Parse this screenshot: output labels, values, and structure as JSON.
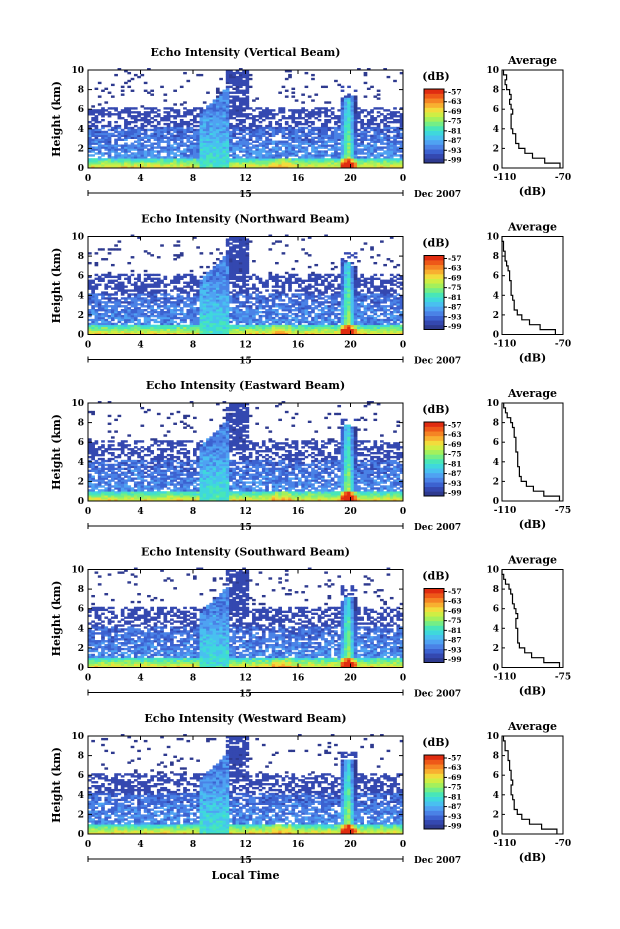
{
  "figure": {
    "x_label": "Local Time",
    "date_label": "Dec 2007",
    "day_label": "15",
    "colorbar_label": "(dB)",
    "colorbar_ticks": [
      "-57",
      "-63",
      "-69",
      "-75",
      "-81",
      "-87",
      "-93",
      "-99"
    ],
    "palette": [
      "#2e3a8f",
      "#3448b0",
      "#3c62d0",
      "#4a82e6",
      "#4fa2f2",
      "#49c0f0",
      "#3fd8dc",
      "#48e6b8",
      "#74ee86",
      "#a4f05c",
      "#cfee44",
      "#f2dc3c",
      "#f8b030",
      "#f58424",
      "#ee5818",
      "#e02c10"
    ],
    "avg_title": "Average",
    "avg_xlabel": "(dB)"
  },
  "chart_data": [
    {
      "type": "heatmap",
      "title": "Echo Intensity (Vertical Beam)",
      "ylabel": "Height (km)",
      "xlim": [
        0,
        24
      ],
      "ylim": [
        0,
        10
      ],
      "xticks": [
        "0",
        "4",
        "8",
        "12",
        "16",
        "20",
        "0"
      ],
      "yticks": [
        "0",
        "2",
        "4",
        "6",
        "8",
        "10"
      ],
      "color_range": [
        -99,
        -57
      ],
      "average_profile": {
        "xlim": [
          -110,
          -70
        ],
        "xticks": [
          "-110",
          "-70"
        ],
        "ylim": [
          0,
          10
        ],
        "height": [
          0,
          0.5,
          1,
          1.5,
          2,
          2.5,
          3,
          3.5,
          4,
          4.5,
          5,
          5.5,
          6,
          6.5,
          7,
          7.5,
          8,
          8.5,
          9,
          9.5
        ],
        "db": [
          -72,
          -82,
          -90,
          -95,
          -99,
          -101,
          -101,
          -103,
          -104,
          -104,
          -104,
          -103,
          -104,
          -105,
          -104,
          -105,
          -107,
          -108,
          -107,
          -109
        ]
      }
    },
    {
      "type": "heatmap",
      "title": "Echo Intensity (Northward Beam)",
      "ylabel": "Height (km)",
      "xlim": [
        0,
        24
      ],
      "ylim": [
        0,
        10
      ],
      "xticks": [
        "0",
        "4",
        "8",
        "12",
        "16",
        "20",
        "0"
      ],
      "yticks": [
        "0",
        "2",
        "4",
        "6",
        "8",
        "10"
      ],
      "color_range": [
        -99,
        -57
      ],
      "average_profile": {
        "xlim": [
          -110,
          -70
        ],
        "xticks": [
          "-110",
          "-70"
        ],
        "ylim": [
          0,
          10
        ],
        "height": [
          0,
          0.5,
          1,
          1.5,
          2,
          2.5,
          3,
          3.5,
          4,
          4.5,
          5,
          5.5,
          6,
          6.5,
          7,
          7.5,
          8,
          8.5,
          9,
          9.5
        ],
        "db": [
          -75,
          -85,
          -92,
          -97,
          -100,
          -102,
          -102,
          -103,
          -104,
          -104,
          -104,
          -105,
          -105,
          -106,
          -107,
          -108,
          -108,
          -109,
          -109,
          -110
        ]
      }
    },
    {
      "type": "heatmap",
      "title": "Echo Intensity (Eastward Beam)",
      "ylabel": "Height (km)",
      "xlim": [
        0,
        24
      ],
      "ylim": [
        0,
        10
      ],
      "xticks": [
        "0",
        "4",
        "8",
        "12",
        "16",
        "20",
        "0"
      ],
      "yticks": [
        "0",
        "2",
        "4",
        "6",
        "8",
        "10"
      ],
      "color_range": [
        -99,
        -57
      ],
      "average_profile": {
        "xlim": [
          -110,
          -75
        ],
        "xticks": [
          "-110",
          "-75"
        ],
        "ylim": [
          0,
          10
        ],
        "height": [
          0,
          0.5,
          1,
          1.5,
          2,
          2.5,
          3,
          3.5,
          4,
          4.5,
          5,
          5.5,
          6,
          6.5,
          7,
          7.5,
          8,
          8.5,
          9,
          9.5
        ],
        "db": [
          -77,
          -86,
          -92,
          -96,
          -99,
          -100,
          -100,
          -101,
          -101,
          -101,
          -102,
          -102,
          -102,
          -103,
          -103,
          -104,
          -105,
          -107,
          -108,
          -109
        ]
      }
    },
    {
      "type": "heatmap",
      "title": "Echo Intensity (Southward Beam)",
      "ylabel": "Height (km)",
      "xlim": [
        0,
        24
      ],
      "ylim": [
        0,
        10
      ],
      "xticks": [
        "0",
        "4",
        "8",
        "12",
        "16",
        "20",
        "0"
      ],
      "yticks": [
        "0",
        "2",
        "4",
        "6",
        "8",
        "10"
      ],
      "color_range": [
        -99,
        -57
      ],
      "average_profile": {
        "xlim": [
          -110,
          -75
        ],
        "xticks": [
          "-110",
          "-75"
        ],
        "ylim": [
          0,
          10
        ],
        "height": [
          0,
          0.5,
          1,
          1.5,
          2,
          2.5,
          3,
          3.5,
          4,
          4.5,
          5,
          5.5,
          6,
          6.5,
          7,
          7.5,
          8,
          8.5,
          9,
          9.5
        ],
        "db": [
          -77,
          -86,
          -93,
          -97,
          -100,
          -101,
          -101,
          -101,
          -102,
          -102,
          -101,
          -102,
          -103,
          -104,
          -104,
          -105,
          -106,
          -108,
          -109,
          -110
        ]
      }
    },
    {
      "type": "heatmap",
      "title": "Echo Intensity (Westward Beam)",
      "ylabel": "Height (km)",
      "xlim": [
        0,
        24
      ],
      "ylim": [
        0,
        10
      ],
      "xticks": [
        "0",
        "4",
        "8",
        "12",
        "16",
        "20",
        "0"
      ],
      "yticks": [
        "0",
        "2",
        "4",
        "6",
        "8",
        "10"
      ],
      "color_range": [
        -99,
        -57
      ],
      "average_profile": {
        "xlim": [
          -110,
          -70
        ],
        "xticks": [
          "-110",
          "-70"
        ],
        "ylim": [
          0,
          10
        ],
        "height": [
          0,
          0.5,
          1,
          1.5,
          2,
          2.5,
          3,
          3.5,
          4,
          4.5,
          5,
          5.5,
          6,
          6.5,
          7,
          7.5,
          8,
          8.5,
          9,
          9.5
        ],
        "db": [
          -74,
          -84,
          -92,
          -97,
          -100,
          -102,
          -102,
          -103,
          -104,
          -104,
          -103,
          -104,
          -104,
          -105,
          -105,
          -106,
          -106,
          -108,
          -108,
          -109
        ]
      }
    }
  ]
}
